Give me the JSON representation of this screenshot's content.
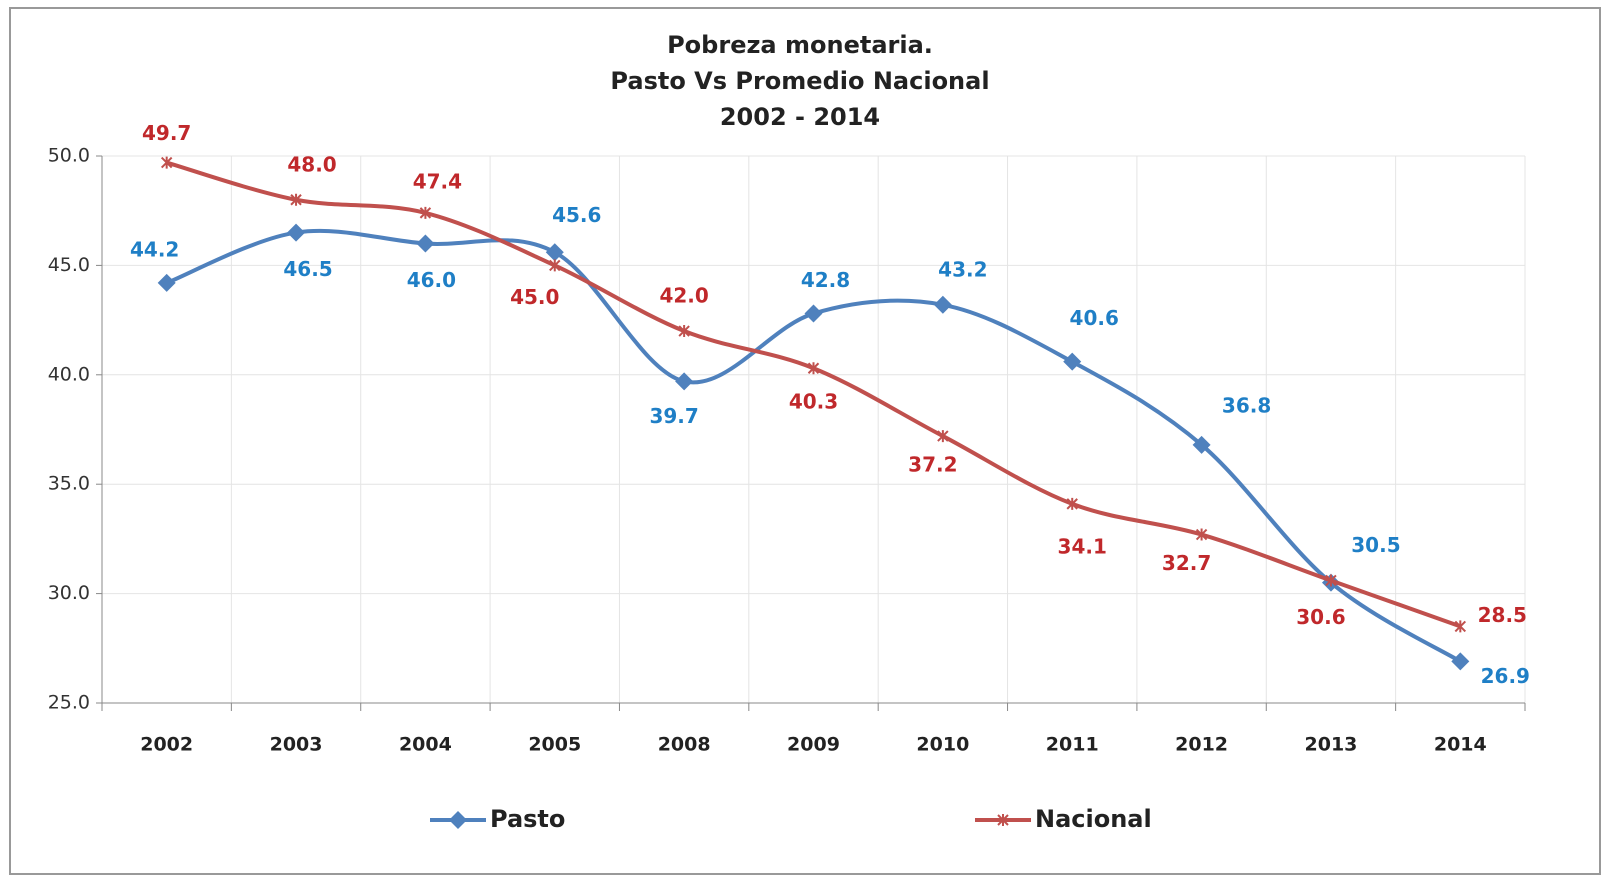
{
  "chart_data": {
    "type": "line",
    "title": [
      "Pobreza monetaria.",
      "Pasto Vs Promedio Nacional",
      "2002 - 2014"
    ],
    "categories": [
      "2002",
      "2003",
      "2004",
      "2005",
      "2008",
      "2009",
      "2010",
      "2011",
      "2012",
      "2013",
      "2014"
    ],
    "series": [
      {
        "name": "Pasto",
        "color": "#4f81bd",
        "label_color": "#1f7fc6",
        "marker": "diamond",
        "values": [
          44.2,
          46.5,
          46.0,
          45.6,
          39.7,
          42.8,
          43.2,
          40.6,
          36.8,
          30.5,
          26.9
        ],
        "value_labels": [
          "44.2",
          "46.5",
          "46.0",
          "45.6",
          "39.7",
          "42.8",
          "43.2",
          "40.6",
          "36.8",
          "30.5",
          "26.9"
        ]
      },
      {
        "name": "Nacional",
        "color": "#c0504d",
        "label_color": "#c0282b",
        "marker": "star",
        "values": [
          49.7,
          48.0,
          47.4,
          45.0,
          42.0,
          40.3,
          37.2,
          34.1,
          32.7,
          30.6,
          28.5
        ],
        "value_labels": [
          "49.7",
          "48.0",
          "47.4",
          "45.0",
          "42.0",
          "40.3",
          "37.2",
          "34.1",
          "32.7",
          "30.6",
          "28.5"
        ]
      }
    ],
    "ylim": [
      25,
      50
    ],
    "yticks": [
      {
        "value": 25,
        "label": "25.0"
      },
      {
        "value": 30,
        "label": "30.0"
      },
      {
        "value": 35,
        "label": "35.0"
      },
      {
        "value": 40,
        "label": "40.0"
      },
      {
        "value": 45,
        "label": "45.0"
      },
      {
        "value": 50,
        "label": "50.0"
      }
    ],
    "grid": true,
    "smooth": true,
    "legend": "bottom"
  }
}
